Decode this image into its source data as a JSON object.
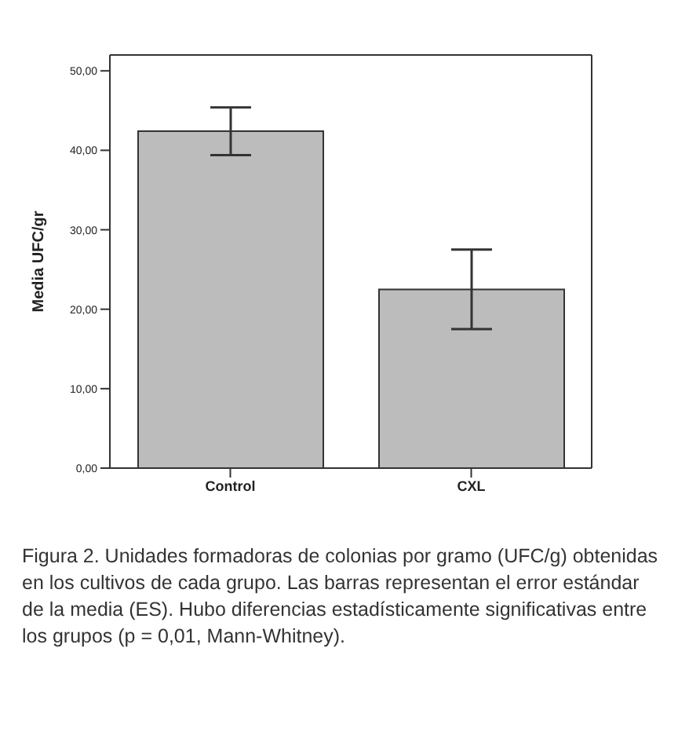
{
  "chart_data": {
    "type": "bar",
    "categories": [
      "Control",
      "CXL"
    ],
    "values": [
      42.4,
      22.5
    ],
    "errors": [
      3.0,
      5.0
    ],
    "color": "#bcbcbc",
    "ylabel": "Media UFC/gr",
    "ylim": [
      0,
      52
    ],
    "yticks": [
      {
        "value": 0,
        "label": "0,00"
      },
      {
        "value": 10,
        "label": "10,00"
      },
      {
        "value": 20,
        "label": "20,00"
      },
      {
        "value": 30,
        "label": "30,00"
      },
      {
        "value": 40,
        "label": "40,00"
      },
      {
        "value": 50,
        "label": "50,00"
      }
    ],
    "grid": false,
    "legend": false,
    "annotations": [
      "Figura 2. Unidades formadoras de colonias por gramo (UFC/g) obtenidas en los cultivos de cada grupo. Las barras representan el error estándar de la media (ES). Hubo diferencias estadísticamente significativas entre los grupos (p = 0,01, Mann-Whitney)."
    ]
  }
}
